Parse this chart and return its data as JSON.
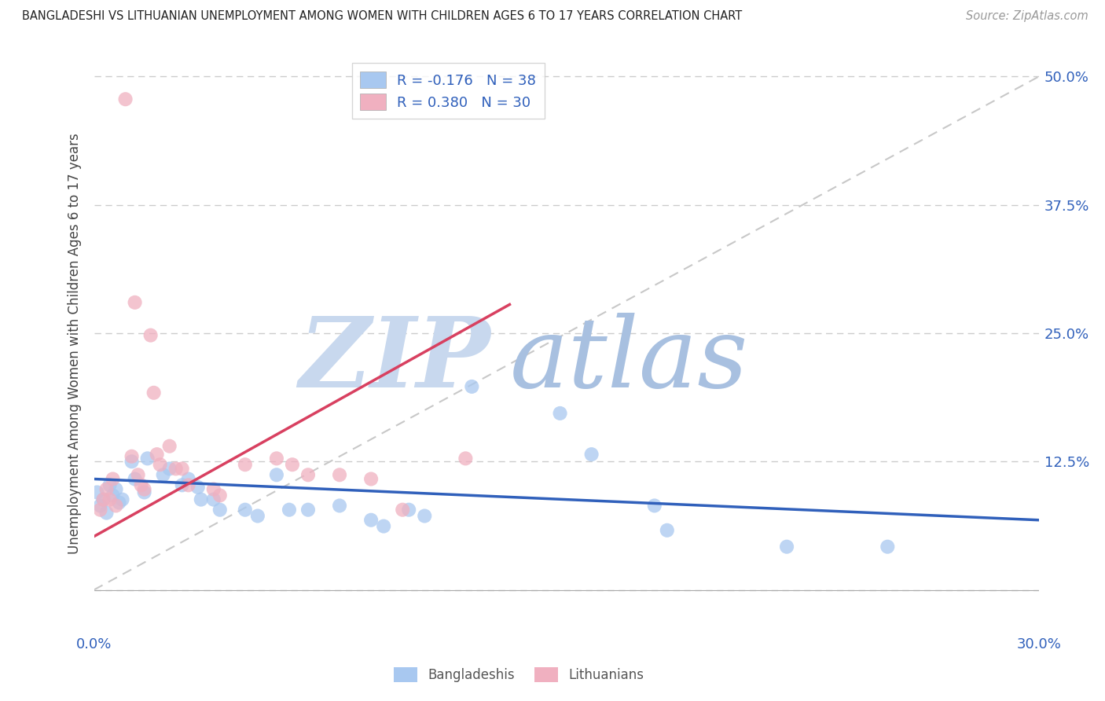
{
  "title": "BANGLADESHI VS LITHUANIAN UNEMPLOYMENT AMONG WOMEN WITH CHILDREN AGES 6 TO 17 YEARS CORRELATION CHART",
  "source": "Source: ZipAtlas.com",
  "ylabel": "Unemployment Among Women with Children Ages 6 to 17 years",
  "xlim": [
    0.0,
    0.3
  ],
  "ylim": [
    -0.04,
    0.52
  ],
  "plot_ylim": [
    0.0,
    0.5
  ],
  "xticks": [
    0.0,
    0.05,
    0.1,
    0.15,
    0.2,
    0.25,
    0.3
  ],
  "xtick_labels": [
    "0.0%",
    "",
    "",
    "",
    "",
    "",
    "30.0%"
  ],
  "yticks": [
    0.0,
    0.125,
    0.25,
    0.375,
    0.5
  ],
  "ytick_labels_right": [
    "",
    "12.5%",
    "25.0%",
    "37.5%",
    "50.0%"
  ],
  "bangladeshi_r": -0.176,
  "bangladeshi_n": 38,
  "lithuanian_r": 0.38,
  "lithuanian_n": 30,
  "blue_color": "#a8c8f0",
  "pink_color": "#f0b0c0",
  "blue_line_color": "#3060bb",
  "pink_line_color": "#d84060",
  "diag_line_color": "#c8c8c8",
  "background_color": "#ffffff",
  "watermark_zip": "ZIP",
  "watermark_atlas": "atlas",
  "bangladeshi_scatter": [
    [
      0.001,
      0.095
    ],
    [
      0.002,
      0.082
    ],
    [
      0.003,
      0.088
    ],
    [
      0.004,
      0.075
    ],
    [
      0.005,
      0.102
    ],
    [
      0.006,
      0.092
    ],
    [
      0.007,
      0.098
    ],
    [
      0.008,
      0.085
    ],
    [
      0.009,
      0.088
    ],
    [
      0.012,
      0.125
    ],
    [
      0.013,
      0.108
    ],
    [
      0.016,
      0.095
    ],
    [
      0.017,
      0.128
    ],
    [
      0.022,
      0.112
    ],
    [
      0.024,
      0.118
    ],
    [
      0.028,
      0.102
    ],
    [
      0.03,
      0.108
    ],
    [
      0.033,
      0.1
    ],
    [
      0.034,
      0.088
    ],
    [
      0.038,
      0.088
    ],
    [
      0.04,
      0.078
    ],
    [
      0.048,
      0.078
    ],
    [
      0.052,
      0.072
    ],
    [
      0.058,
      0.112
    ],
    [
      0.062,
      0.078
    ],
    [
      0.068,
      0.078
    ],
    [
      0.078,
      0.082
    ],
    [
      0.088,
      0.068
    ],
    [
      0.092,
      0.062
    ],
    [
      0.1,
      0.078
    ],
    [
      0.105,
      0.072
    ],
    [
      0.12,
      0.198
    ],
    [
      0.148,
      0.172
    ],
    [
      0.158,
      0.132
    ],
    [
      0.178,
      0.082
    ],
    [
      0.182,
      0.058
    ],
    [
      0.22,
      0.042
    ],
    [
      0.252,
      0.042
    ]
  ],
  "lithuanian_scatter": [
    [
      0.002,
      0.078
    ],
    [
      0.003,
      0.088
    ],
    [
      0.004,
      0.098
    ],
    [
      0.005,
      0.088
    ],
    [
      0.006,
      0.108
    ],
    [
      0.007,
      0.082
    ],
    [
      0.01,
      0.478
    ],
    [
      0.012,
      0.13
    ],
    [
      0.013,
      0.28
    ],
    [
      0.014,
      0.112
    ],
    [
      0.015,
      0.102
    ],
    [
      0.016,
      0.098
    ],
    [
      0.018,
      0.248
    ],
    [
      0.019,
      0.192
    ],
    [
      0.02,
      0.132
    ],
    [
      0.021,
      0.122
    ],
    [
      0.024,
      0.14
    ],
    [
      0.026,
      0.118
    ],
    [
      0.028,
      0.118
    ],
    [
      0.03,
      0.102
    ],
    [
      0.038,
      0.098
    ],
    [
      0.04,
      0.092
    ],
    [
      0.048,
      0.122
    ],
    [
      0.058,
      0.128
    ],
    [
      0.063,
      0.122
    ],
    [
      0.068,
      0.112
    ],
    [
      0.078,
      0.112
    ],
    [
      0.088,
      0.108
    ],
    [
      0.098,
      0.078
    ],
    [
      0.118,
      0.128
    ]
  ],
  "blue_trend_x": [
    0.0,
    0.3
  ],
  "blue_trend_y": [
    0.108,
    0.068
  ],
  "pink_trend_x": [
    0.0,
    0.132
  ],
  "pink_trend_y": [
    0.052,
    0.278
  ]
}
